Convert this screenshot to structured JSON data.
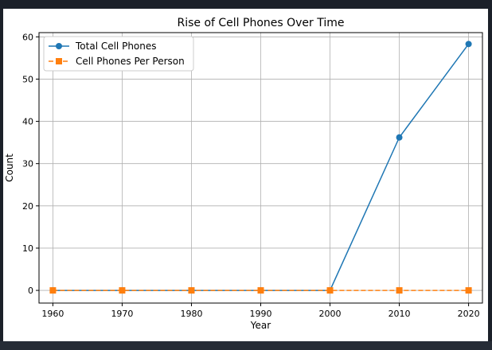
{
  "colors": {
    "background": "#1b2029",
    "series_total": "#1f77b4",
    "series_per_person": "#ff7f0e",
    "grid": "#b0b0b0"
  },
  "chart_data": {
    "type": "line",
    "title": "Rise of Cell Phones Over Time",
    "xlabel": "Year",
    "ylabel": "Count",
    "x": [
      1960,
      1970,
      1980,
      1990,
      2000,
      2010,
      2020
    ],
    "xticks": [
      1960,
      1970,
      1980,
      1990,
      2000,
      2010,
      2020
    ],
    "yticks": [
      0,
      10,
      20,
      30,
      40,
      50,
      60
    ],
    "xlim": [
      1958.0,
      2022.0
    ],
    "ylim": [
      -3,
      61
    ],
    "grid": true,
    "legend_position": "top-left",
    "series": [
      {
        "name": "Total Cell Phones",
        "marker": "circle",
        "linestyle": "solid",
        "values": [
          0,
          0,
          0,
          0,
          0,
          36.2,
          58.3
        ]
      },
      {
        "name": "Cell Phones Per Person",
        "marker": "square",
        "linestyle": "dashed",
        "values": [
          0,
          0,
          0,
          0,
          0,
          0,
          0
        ]
      }
    ]
  }
}
